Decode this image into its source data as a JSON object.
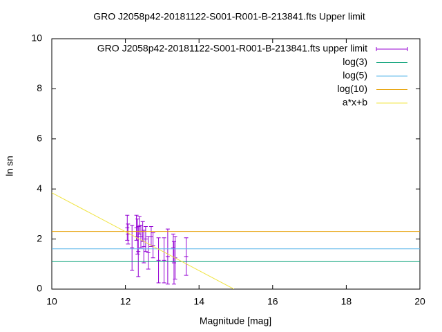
{
  "chart_data": {
    "type": "errorbar",
    "title": "GRO J2058p42-20181122-S001-R001-B-213841.fts Upper limit",
    "x_label": "Magnitude [mag]",
    "y_label": "ln sn",
    "xlim": [
      10,
      20
    ],
    "ylim": [
      0,
      10
    ],
    "xticks": [
      10,
      12,
      14,
      16,
      18,
      20
    ],
    "yticks": [
      0,
      2,
      4,
      6,
      8,
      10
    ],
    "legend": "top-right",
    "series": [
      {
        "name": "GRO J2058p42-20181122-S001-R001-B-213841.fts upper limit",
        "color": "#9400d3",
        "style": "errorbars",
        "x": [
          12.05,
          12.07,
          12.18,
          12.3,
          12.33,
          12.35,
          12.38,
          12.42,
          12.47,
          12.5,
          12.55,
          12.62,
          12.7,
          12.75,
          12.9,
          13.05,
          13.15,
          13.3,
          13.32,
          13.35,
          13.65
        ],
        "values": [
          2.45,
          2.2,
          1.65,
          2.45,
          2.1,
          1.5,
          2.55,
          2.1,
          2.3,
          1.7,
          2.0,
          1.45,
          2.1,
          1.75,
          1.15,
          1.15,
          1.3,
          1.65,
          1.05,
          1.25,
          1.3
        ],
        "errors": [
          0.5,
          0.4,
          0.9,
          0.5,
          0.7,
          1.0,
          0.35,
          0.45,
          0.4,
          0.65,
          0.5,
          0.65,
          0.4,
          0.5,
          0.9,
          0.9,
          1.1,
          0.55,
          0.85,
          0.85,
          0.75
        ]
      },
      {
        "name": "log(3)",
        "color": "#009e73",
        "style": "line",
        "x": [
          10,
          20
        ],
        "values": [
          1.0986,
          1.0986
        ]
      },
      {
        "name": "log(5)",
        "color": "#56b4e9",
        "style": "line",
        "x": [
          10,
          20
        ],
        "values": [
          1.6094,
          1.6094
        ]
      },
      {
        "name": "log(10)",
        "color": "#e69f00",
        "style": "line",
        "x": [
          10,
          20
        ],
        "values": [
          2.3026,
          2.3026
        ]
      },
      {
        "name": "a*x+b",
        "color": "#f0e442",
        "style": "line",
        "x": [
          10,
          14.95
        ],
        "values": [
          3.85,
          0
        ]
      }
    ]
  }
}
